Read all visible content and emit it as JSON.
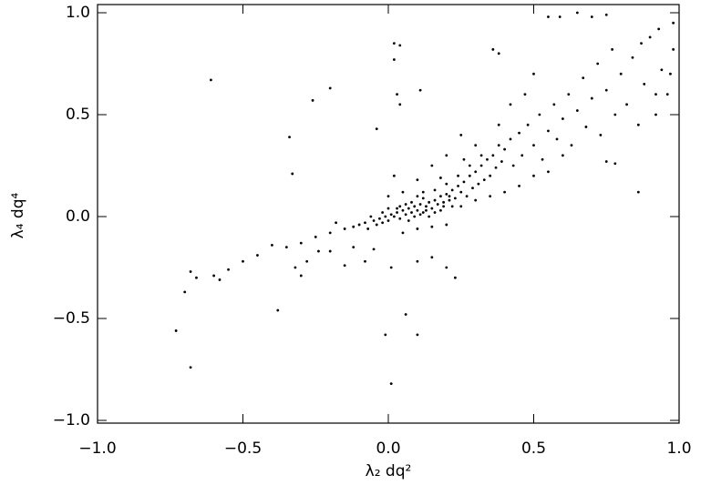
{
  "chart_data": {
    "type": "scatter",
    "xlabel": "λ₂ dq²",
    "ylabel": "λ₄ dq⁴",
    "color": "#000000",
    "xlim": [
      -1,
      1
    ],
    "ylim": [
      -1,
      1
    ],
    "xticks": [
      {
        "value": -1,
        "label": "−1.0"
      },
      {
        "value": -0.5,
        "label": "−0.5"
      },
      {
        "value": 0,
        "label": "0.0"
      },
      0.5,
      {
        "value": 1,
        "label": "1.0"
      }
    ],
    "yticks": [
      {
        "value": -1,
        "label": "−1.0"
      },
      {
        "value": -0.5,
        "label": "−0.5"
      },
      {
        "value": 0,
        "label": "0.0"
      },
      0.5,
      {
        "value": 1,
        "label": "1.0"
      }
    ],
    "x": [
      -0.61,
      -0.73,
      -0.68,
      0.01,
      0.06,
      0.1,
      -0.01,
      -0.38,
      -0.2,
      -0.26,
      -0.34,
      -0.33,
      0.02,
      0.04,
      0.02,
      0.03,
      0.04,
      0.11,
      -0.04,
      0.65,
      0.7,
      0.75,
      0.55,
      0.59,
      0.98,
      0.93,
      0.87,
      0.92,
      0.97,
      0.86,
      0.75,
      0.78,
      0.23,
      0.2,
      -0.7,
      -0.68,
      -0.66,
      -0.6,
      -0.58,
      -0.55,
      -0.5,
      -0.45,
      -0.4,
      -0.35,
      -0.3,
      -0.32,
      -0.3,
      -0.28,
      -0.24,
      -0.2,
      -0.12,
      -0.08,
      -0.05,
      0.1,
      0.15,
      0.01,
      -0.15,
      -0.15,
      -0.12,
      -0.1,
      -0.08,
      -0.07,
      -0.05,
      -0.04,
      -0.03,
      -0.02,
      -0.01,
      0.0,
      0.01,
      0.02,
      0.03,
      0.04,
      0.05,
      0.06,
      0.07,
      0.08,
      0.09,
      0.1,
      0.11,
      0.12,
      0.13,
      0.14,
      0.15,
      0.16,
      0.17,
      0.18,
      0.19,
      0.2,
      0.21,
      0.22,
      0.23,
      0.24,
      0.25,
      0.26,
      0.27,
      0.28,
      0.29,
      0.3,
      0.31,
      0.32,
      0.33,
      0.34,
      0.35,
      0.36,
      0.37,
      0.38,
      0.39,
      0.4,
      0.42,
      0.43,
      0.45,
      0.46,
      0.48,
      0.5,
      0.52,
      0.53,
      0.55,
      0.57,
      0.58,
      0.6,
      0.62,
      0.63,
      0.65,
      0.67,
      0.68,
      0.7,
      0.72,
      0.73,
      0.75,
      0.77,
      0.78,
      0.8,
      0.82,
      0.84,
      0.86,
      0.88,
      0.9,
      0.92,
      0.94,
      0.96,
      0.98,
      0.45,
      0.5,
      0.4,
      0.55,
      0.6,
      0.35,
      0.3,
      0.25,
      0.38,
      0.42,
      0.47,
      0.5,
      0.36,
      0.38,
      0.25,
      0.2,
      0.15,
      0.1,
      0.05,
      0.0,
      0.02,
      0.05,
      0.1,
      0.15,
      0.2,
      -0.2,
      -0.25,
      -0.18,
      0.08,
      0.12,
      0.06,
      0.14,
      0.18,
      0.22,
      0.03,
      -0.06,
      0.1,
      0.12,
      0.16,
      0.2,
      0.24,
      0.28,
      0.32,
      0.3,
      0.26,
      0.18,
      0.09,
      0.11,
      0.13,
      0.07,
      -0.02,
      0.0,
      0.04,
      0.16,
      0.19,
      0.21
    ],
    "values": [
      0.67,
      -0.56,
      -0.74,
      -0.82,
      -0.48,
      -0.58,
      -0.58,
      -0.46,
      0.63,
      0.57,
      0.39,
      0.21,
      0.85,
      0.84,
      0.77,
      0.6,
      0.55,
      0.62,
      0.43,
      1.0,
      0.98,
      0.99,
      0.98,
      0.98,
      0.95,
      0.92,
      0.85,
      0.6,
      0.7,
      0.12,
      0.27,
      0.26,
      -0.3,
      -0.25,
      -0.37,
      -0.27,
      -0.3,
      -0.29,
      -0.31,
      -0.26,
      -0.22,
      -0.19,
      -0.14,
      -0.15,
      -0.13,
      -0.25,
      -0.29,
      -0.22,
      -0.17,
      -0.17,
      -0.15,
      -0.22,
      -0.16,
      -0.22,
      -0.2,
      -0.25,
      -0.24,
      -0.06,
      -0.05,
      -0.04,
      -0.03,
      -0.06,
      -0.02,
      -0.04,
      -0.01,
      -0.03,
      0.0,
      -0.02,
      0.01,
      0.0,
      0.02,
      -0.01,
      0.03,
      0.01,
      0.04,
      0.02,
      0.05,
      0.03,
      0.06,
      0.02,
      0.05,
      0.07,
      0.04,
      0.08,
      0.06,
      0.1,
      0.07,
      0.11,
      0.08,
      0.13,
      0.09,
      0.15,
      0.12,
      0.17,
      0.1,
      0.2,
      0.14,
      0.22,
      0.16,
      0.25,
      0.18,
      0.28,
      0.2,
      0.3,
      0.24,
      0.35,
      0.27,
      0.33,
      0.38,
      0.25,
      0.41,
      0.3,
      0.45,
      0.35,
      0.5,
      0.28,
      0.42,
      0.55,
      0.38,
      0.48,
      0.6,
      0.35,
      0.52,
      0.68,
      0.44,
      0.58,
      0.75,
      0.4,
      0.62,
      0.82,
      0.5,
      0.7,
      0.55,
      0.78,
      0.45,
      0.65,
      0.88,
      0.5,
      0.72,
      0.6,
      0.82,
      0.15,
      0.2,
      0.12,
      0.22,
      0.3,
      0.1,
      0.08,
      0.05,
      0.45,
      0.55,
      0.6,
      0.7,
      0.82,
      0.8,
      0.4,
      0.3,
      0.25,
      0.18,
      0.12,
      0.1,
      0.2,
      -0.08,
      -0.06,
      -0.05,
      -0.04,
      -0.08,
      -0.1,
      -0.03,
      0.07,
      0.09,
      0.06,
      0.0,
      0.03,
      0.05,
      0.04,
      0.0,
      0.1,
      0.12,
      0.13,
      0.16,
      0.2,
      0.25,
      0.3,
      0.35,
      0.28,
      0.19,
      0.0,
      0.01,
      0.03,
      -0.02,
      0.02,
      0.04,
      0.05,
      0.02,
      0.05,
      0.1
    ]
  }
}
